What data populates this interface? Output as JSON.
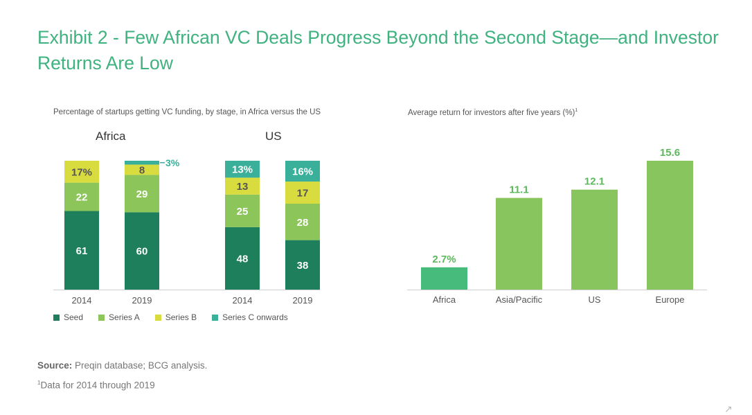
{
  "page": {
    "title": "Exhibit 2 - Few African VC Deals Progress Beyond the Second Stage—and Investor Returns Are Low",
    "source_label": "Source:",
    "source_text": "Preqin database; BCG analysis.",
    "footnote_marker": "1",
    "footnote_text": "Data for 2014 through 2019"
  },
  "colors": {
    "seed": "#1e7f5c",
    "series_a": "#8cc65a",
    "series_b": "#d9dc3f",
    "series_c": "#3ab09a",
    "africa_bar": "#46bb7c",
    "other_bar": "#88c55e",
    "label_green": "#5cb85c"
  },
  "chart_data": [
    {
      "type": "bar",
      "stacked": true,
      "title": "Percentage of startups getting VC funding, by stage, in Africa versus the US",
      "groups": [
        "Africa",
        "US"
      ],
      "categories": [
        "2014",
        "2019",
        "2014",
        "2019"
      ],
      "category_groups": [
        "Africa",
        "Africa",
        "US",
        "US"
      ],
      "series": [
        {
          "name": "Seed",
          "values": [
            61,
            60,
            48,
            38
          ],
          "labels": [
            "61",
            "60",
            "48",
            "38"
          ]
        },
        {
          "name": "Series A",
          "values": [
            22,
            29,
            25,
            28
          ],
          "labels": [
            "22",
            "29",
            "25",
            "28"
          ]
        },
        {
          "name": "Series B",
          "values": [
            17,
            8,
            13,
            17
          ],
          "labels": [
            "17%",
            "8",
            "13",
            "17"
          ]
        },
        {
          "name": "Series C onwards",
          "values": [
            0,
            3,
            13,
            16
          ],
          "labels": [
            "",
            "3%",
            "13%",
            "16%"
          ]
        }
      ],
      "ylim": [
        0,
        100
      ],
      "legend": "bottom"
    },
    {
      "type": "bar",
      "title": "Average return for investors after five years (%)",
      "title_footnote_marker": "1",
      "categories": [
        "Africa",
        "Asia/Pacific",
        "US",
        "Europe"
      ],
      "values": [
        2.7,
        11.1,
        12.1,
        15.6
      ],
      "labels": [
        "2.7%",
        "11.1",
        "12.1",
        "15.6"
      ],
      "ylim": [
        0,
        15.6
      ]
    }
  ]
}
